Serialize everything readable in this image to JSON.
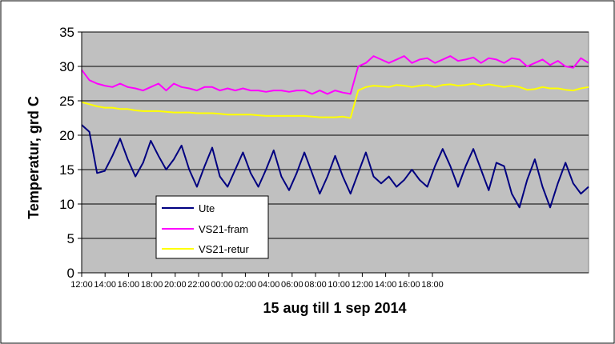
{
  "chart_data": {
    "type": "line",
    "title": "",
    "xlabel": "15 aug till 1 sep 2014",
    "ylabel": "Temperatur, grd C",
    "ylim": [
      0,
      35
    ],
    "y_ticks": [
      "0",
      "5",
      "10",
      "15",
      "20",
      "25",
      "30",
      "35"
    ],
    "x_ticks": [
      "12:00",
      "14:00",
      "16:00",
      "18:00",
      "20:00",
      "22:00",
      "00:00",
      "02:00",
      "04:00",
      "06:00",
      "08:00",
      "10:00",
      "12:00",
      "14:00",
      "16:00",
      "18:00"
    ],
    "grid": true,
    "legend_position": "bottom-left inside plot",
    "background_color": "#c0c0c0",
    "series": [
      {
        "name": "Ute",
        "color": "#000080",
        "values": [
          21.5,
          20.5,
          14.5,
          14.8,
          17.0,
          19.5,
          16.5,
          14.0,
          16.0,
          19.2,
          17.0,
          15.0,
          16.5,
          18.5,
          15.0,
          12.5,
          15.5,
          18.2,
          14.0,
          12.5,
          15.0,
          17.5,
          14.5,
          12.5,
          15.0,
          17.8,
          14.0,
          12.0,
          14.5,
          17.5,
          14.5,
          11.5,
          14.0,
          17.0,
          14.0,
          11.5,
          14.5,
          17.5,
          14.0,
          13.0,
          14.0,
          12.5,
          13.5,
          15.0,
          13.5,
          12.5,
          15.5,
          18.0,
          15.5,
          12.5,
          15.5,
          18.0,
          15.0,
          12.0,
          16.0,
          15.5,
          11.5,
          9.5,
          13.5,
          16.5,
          12.5,
          9.5,
          13.0,
          16.0,
          13.0,
          11.5,
          12.5
        ]
      },
      {
        "name": "VS21-fram",
        "color": "#ff00ff",
        "values": [
          29.5,
          28.0,
          27.5,
          27.2,
          27.0,
          27.5,
          27.0,
          26.8,
          26.5,
          27.0,
          27.5,
          26.5,
          27.5,
          27.0,
          26.8,
          26.5,
          27.0,
          27.0,
          26.5,
          26.8,
          26.5,
          26.8,
          26.5,
          26.5,
          26.3,
          26.5,
          26.5,
          26.3,
          26.5,
          26.5,
          26.0,
          26.5,
          26.0,
          26.5,
          26.2,
          26.0,
          30.0,
          30.5,
          31.5,
          31.0,
          30.5,
          31.0,
          31.5,
          30.5,
          31.0,
          31.2,
          30.5,
          31.0,
          31.5,
          30.8,
          31.0,
          31.3,
          30.5,
          31.2,
          31.0,
          30.5,
          31.2,
          31.0,
          30.0,
          30.5,
          31.0,
          30.2,
          30.8,
          30.0,
          29.8,
          31.2,
          30.5
        ]
      },
      {
        "name": "VS21-retur",
        "color": "#ffff00",
        "values": [
          24.8,
          24.5,
          24.2,
          24.0,
          24.0,
          23.8,
          23.8,
          23.6,
          23.5,
          23.5,
          23.5,
          23.4,
          23.3,
          23.3,
          23.3,
          23.2,
          23.2,
          23.2,
          23.1,
          23.0,
          23.0,
          23.0,
          23.0,
          22.9,
          22.8,
          22.8,
          22.8,
          22.8,
          22.8,
          22.8,
          22.7,
          22.6,
          22.6,
          22.6,
          22.7,
          22.5,
          26.5,
          27.0,
          27.2,
          27.1,
          27.0,
          27.3,
          27.2,
          27.0,
          27.2,
          27.3,
          27.0,
          27.3,
          27.4,
          27.2,
          27.3,
          27.5,
          27.2,
          27.4,
          27.2,
          27.0,
          27.2,
          27.0,
          26.6,
          26.7,
          27.0,
          26.8,
          26.8,
          26.6,
          26.5,
          26.8,
          27.0
        ]
      }
    ]
  }
}
